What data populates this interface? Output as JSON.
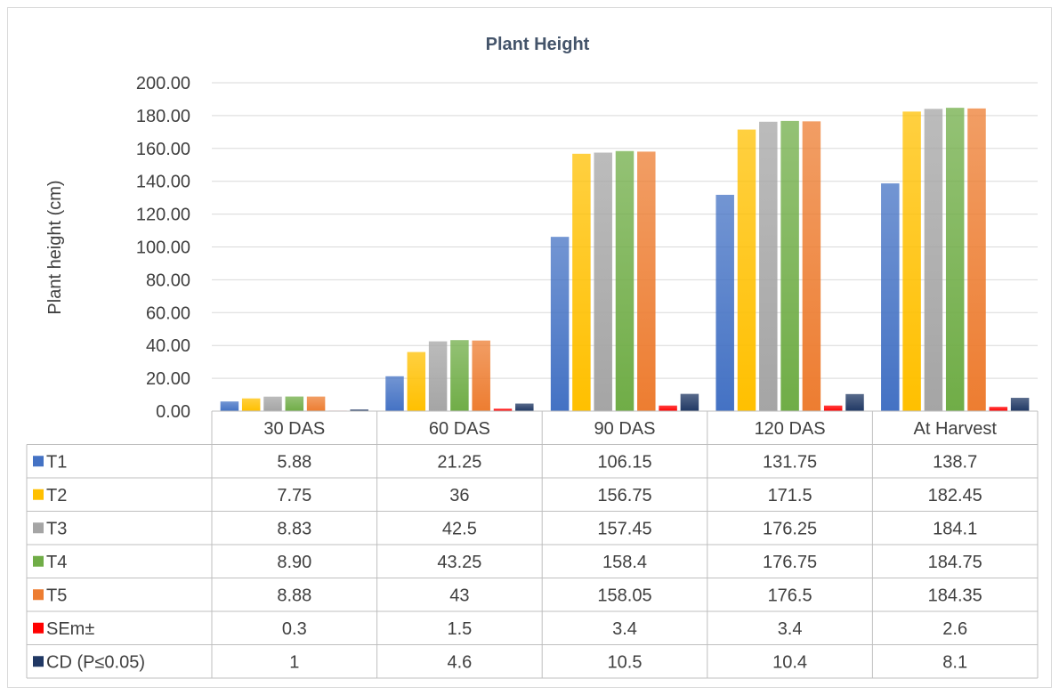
{
  "chart_data": {
    "type": "bar",
    "title": "Plant Height",
    "ylabel": "Plant height (cm)",
    "xlabel": "",
    "ylim": [
      0,
      200
    ],
    "y_ticks": [
      "0.00",
      "20.00",
      "40.00",
      "60.00",
      "80.00",
      "100.00",
      "120.00",
      "140.00",
      "160.00",
      "180.00",
      "200.00"
    ],
    "grid": true,
    "legend_placement": "data-table",
    "categories": [
      "30 DAS",
      "60 DAS",
      "90 DAS",
      "120 DAS",
      "At Harvest"
    ],
    "series": [
      {
        "name": "T1",
        "color": "#4472c4",
        "values": [
          5.88,
          21.25,
          106.15,
          131.75,
          138.7
        ],
        "labels": [
          "5.88",
          "21.25",
          "106.15",
          "131.75",
          "138.7"
        ]
      },
      {
        "name": "T2",
        "color": "#ffc000",
        "values": [
          7.75,
          36,
          156.75,
          171.5,
          182.45
        ],
        "labels": [
          "7.75",
          "36",
          "156.75",
          "171.5",
          "182.45"
        ]
      },
      {
        "name": "T3",
        "color": "#a5a5a5",
        "values": [
          8.83,
          42.5,
          157.45,
          176.25,
          184.1
        ],
        "labels": [
          "8.83",
          "42.5",
          "157.45",
          "176.25",
          "184.1"
        ]
      },
      {
        "name": "T4",
        "color": "#70ad47",
        "values": [
          8.9,
          43.25,
          158.4,
          176.75,
          184.75
        ],
        "labels": [
          "8.90",
          "43.25",
          "158.4",
          "176.75",
          "184.75"
        ]
      },
      {
        "name": "T5",
        "color": "#ed7d31",
        "values": [
          8.88,
          43,
          158.05,
          176.5,
          184.35
        ],
        "labels": [
          "8.88",
          "43",
          "158.05",
          "176.5",
          "184.35"
        ]
      },
      {
        "name": "SEm±",
        "color": "#ff0000",
        "values": [
          0.3,
          1.5,
          3.4,
          3.4,
          2.6
        ],
        "labels": [
          "0.3",
          "1.5",
          "3.4",
          "3.4",
          "2.6"
        ]
      },
      {
        "name": "CD (P≤0.05)",
        "color": "#203864",
        "values": [
          1,
          4.6,
          10.5,
          10.4,
          8.1
        ],
        "labels": [
          "1",
          "4.6",
          "10.5",
          "10.4",
          "8.1"
        ]
      }
    ]
  }
}
